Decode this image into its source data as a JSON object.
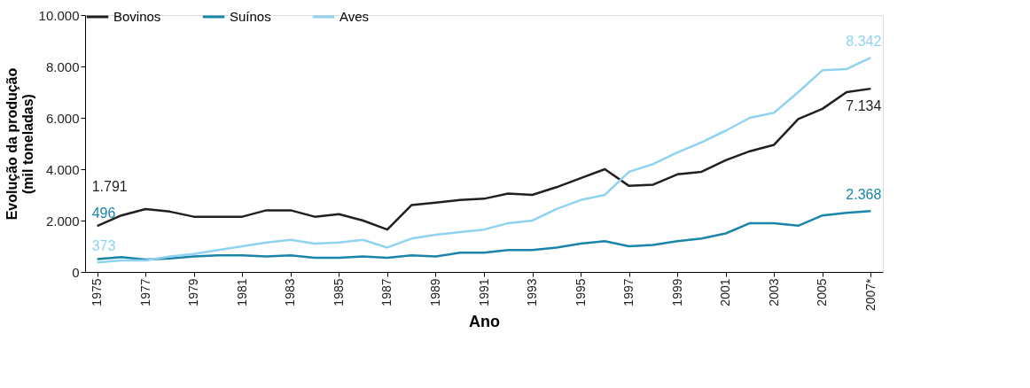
{
  "chart_data": {
    "type": "line",
    "xlabel": "Ano",
    "ylabel": "Evolução da produção\n(mil toneladas)",
    "categories": [
      "1975",
      null,
      "1977",
      null,
      "1979",
      null,
      "1981",
      null,
      "1983",
      null,
      "1985",
      null,
      "1987",
      null,
      "1989",
      null,
      "1991",
      null,
      "1993",
      null,
      "1995",
      null,
      "1997",
      null,
      "1999",
      null,
      "2001",
      null,
      "2003",
      null,
      "2005",
      null,
      "2007*"
    ],
    "series": [
      {
        "name": "Bovinos",
        "color": "#231f20",
        "values": [
          1791,
          2200,
          2450,
          2350,
          2150,
          2150,
          2150,
          2400,
          2400,
          2150,
          2250,
          2000,
          1650,
          2600,
          2700,
          2800,
          2850,
          3050,
          3000,
          3300,
          3650,
          4000,
          3350,
          3400,
          3800,
          3900,
          4350,
          4700,
          4950,
          5950,
          6350,
          7000,
          7134
        ]
      },
      {
        "name": "Suínos",
        "color": "#1a85a8",
        "values": [
          496,
          580,
          480,
          530,
          600,
          650,
          650,
          600,
          650,
          550,
          550,
          600,
          550,
          650,
          600,
          750,
          750,
          850,
          850,
          950,
          1100,
          1200,
          1000,
          1050,
          1200,
          1300,
          1500,
          1900,
          1900,
          1800,
          2200,
          2300,
          2368
        ]
      },
      {
        "name": "Aves",
        "color": "#8fd3f0",
        "values": [
          373,
          450,
          450,
          600,
          700,
          850,
          1000,
          1150,
          1250,
          1100,
          1150,
          1250,
          950,
          1300,
          1450,
          1550,
          1650,
          1900,
          2000,
          2450,
          2800,
          3000,
          3900,
          4200,
          4650,
          5050,
          5500,
          6000,
          6200,
          7000,
          7850,
          7900,
          8342
        ]
      }
    ],
    "annotations": [
      {
        "text": "1.791",
        "x": "1975",
        "y": 1791
      },
      {
        "text": "496",
        "x": "1975",
        "y": 496
      },
      {
        "text": "373",
        "x": "1975",
        "y": 373
      },
      {
        "text": "8.342",
        "x": "2007*",
        "y": 8342
      },
      {
        "text": "7.134",
        "x": "2007*",
        "y": 7134
      },
      {
        "text": "2.368",
        "x": "2007*",
        "y": 2368
      }
    ],
    "ylim": [
      0,
      10000
    ],
    "yticks": [
      0,
      {
        "value": 2000,
        "label": "2.000"
      },
      {
        "value": 4000,
        "label": "4.000"
      },
      {
        "value": 6000,
        "label": "6.000"
      },
      {
        "value": 8000,
        "label": "8.000"
      },
      {
        "value": 10000,
        "label": "10.000"
      }
    ],
    "grid": false,
    "legend": "top",
    "marker": "none",
    "line_style": "solid"
  }
}
